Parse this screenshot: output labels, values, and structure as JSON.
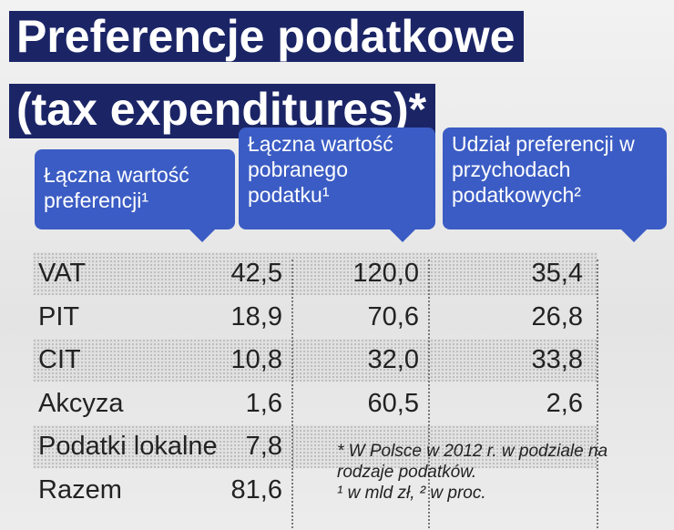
{
  "header": {
    "title_lines": [
      "Preferencje podatkowe",
      "(tax expenditures)*"
    ]
  },
  "table": {
    "columns": [
      "Łączna wartość preferencji¹",
      "Łączna wartość pobranego podatku¹",
      "Udział preferencji w przychodach podatkowych²"
    ],
    "rows": [
      [
        "VAT",
        "42,5",
        "120,0",
        "35,4"
      ],
      [
        "PIT",
        "18,9",
        "70,6",
        "26,8"
      ],
      [
        "CIT",
        "10,8",
        "32,0",
        "33,8"
      ],
      [
        "Akcyza",
        "1,6",
        "60,5",
        "2,6"
      ],
      [
        "Podatki lokalne",
        "7,8"
      ],
      [
        "Razem",
        "81,6"
      ]
    ]
  },
  "footnotes": [
    "* W Polsce w 2012 r. w podziale na rodzaje podatków.",
    "¹ w mld zł, ² w proc."
  ]
}
